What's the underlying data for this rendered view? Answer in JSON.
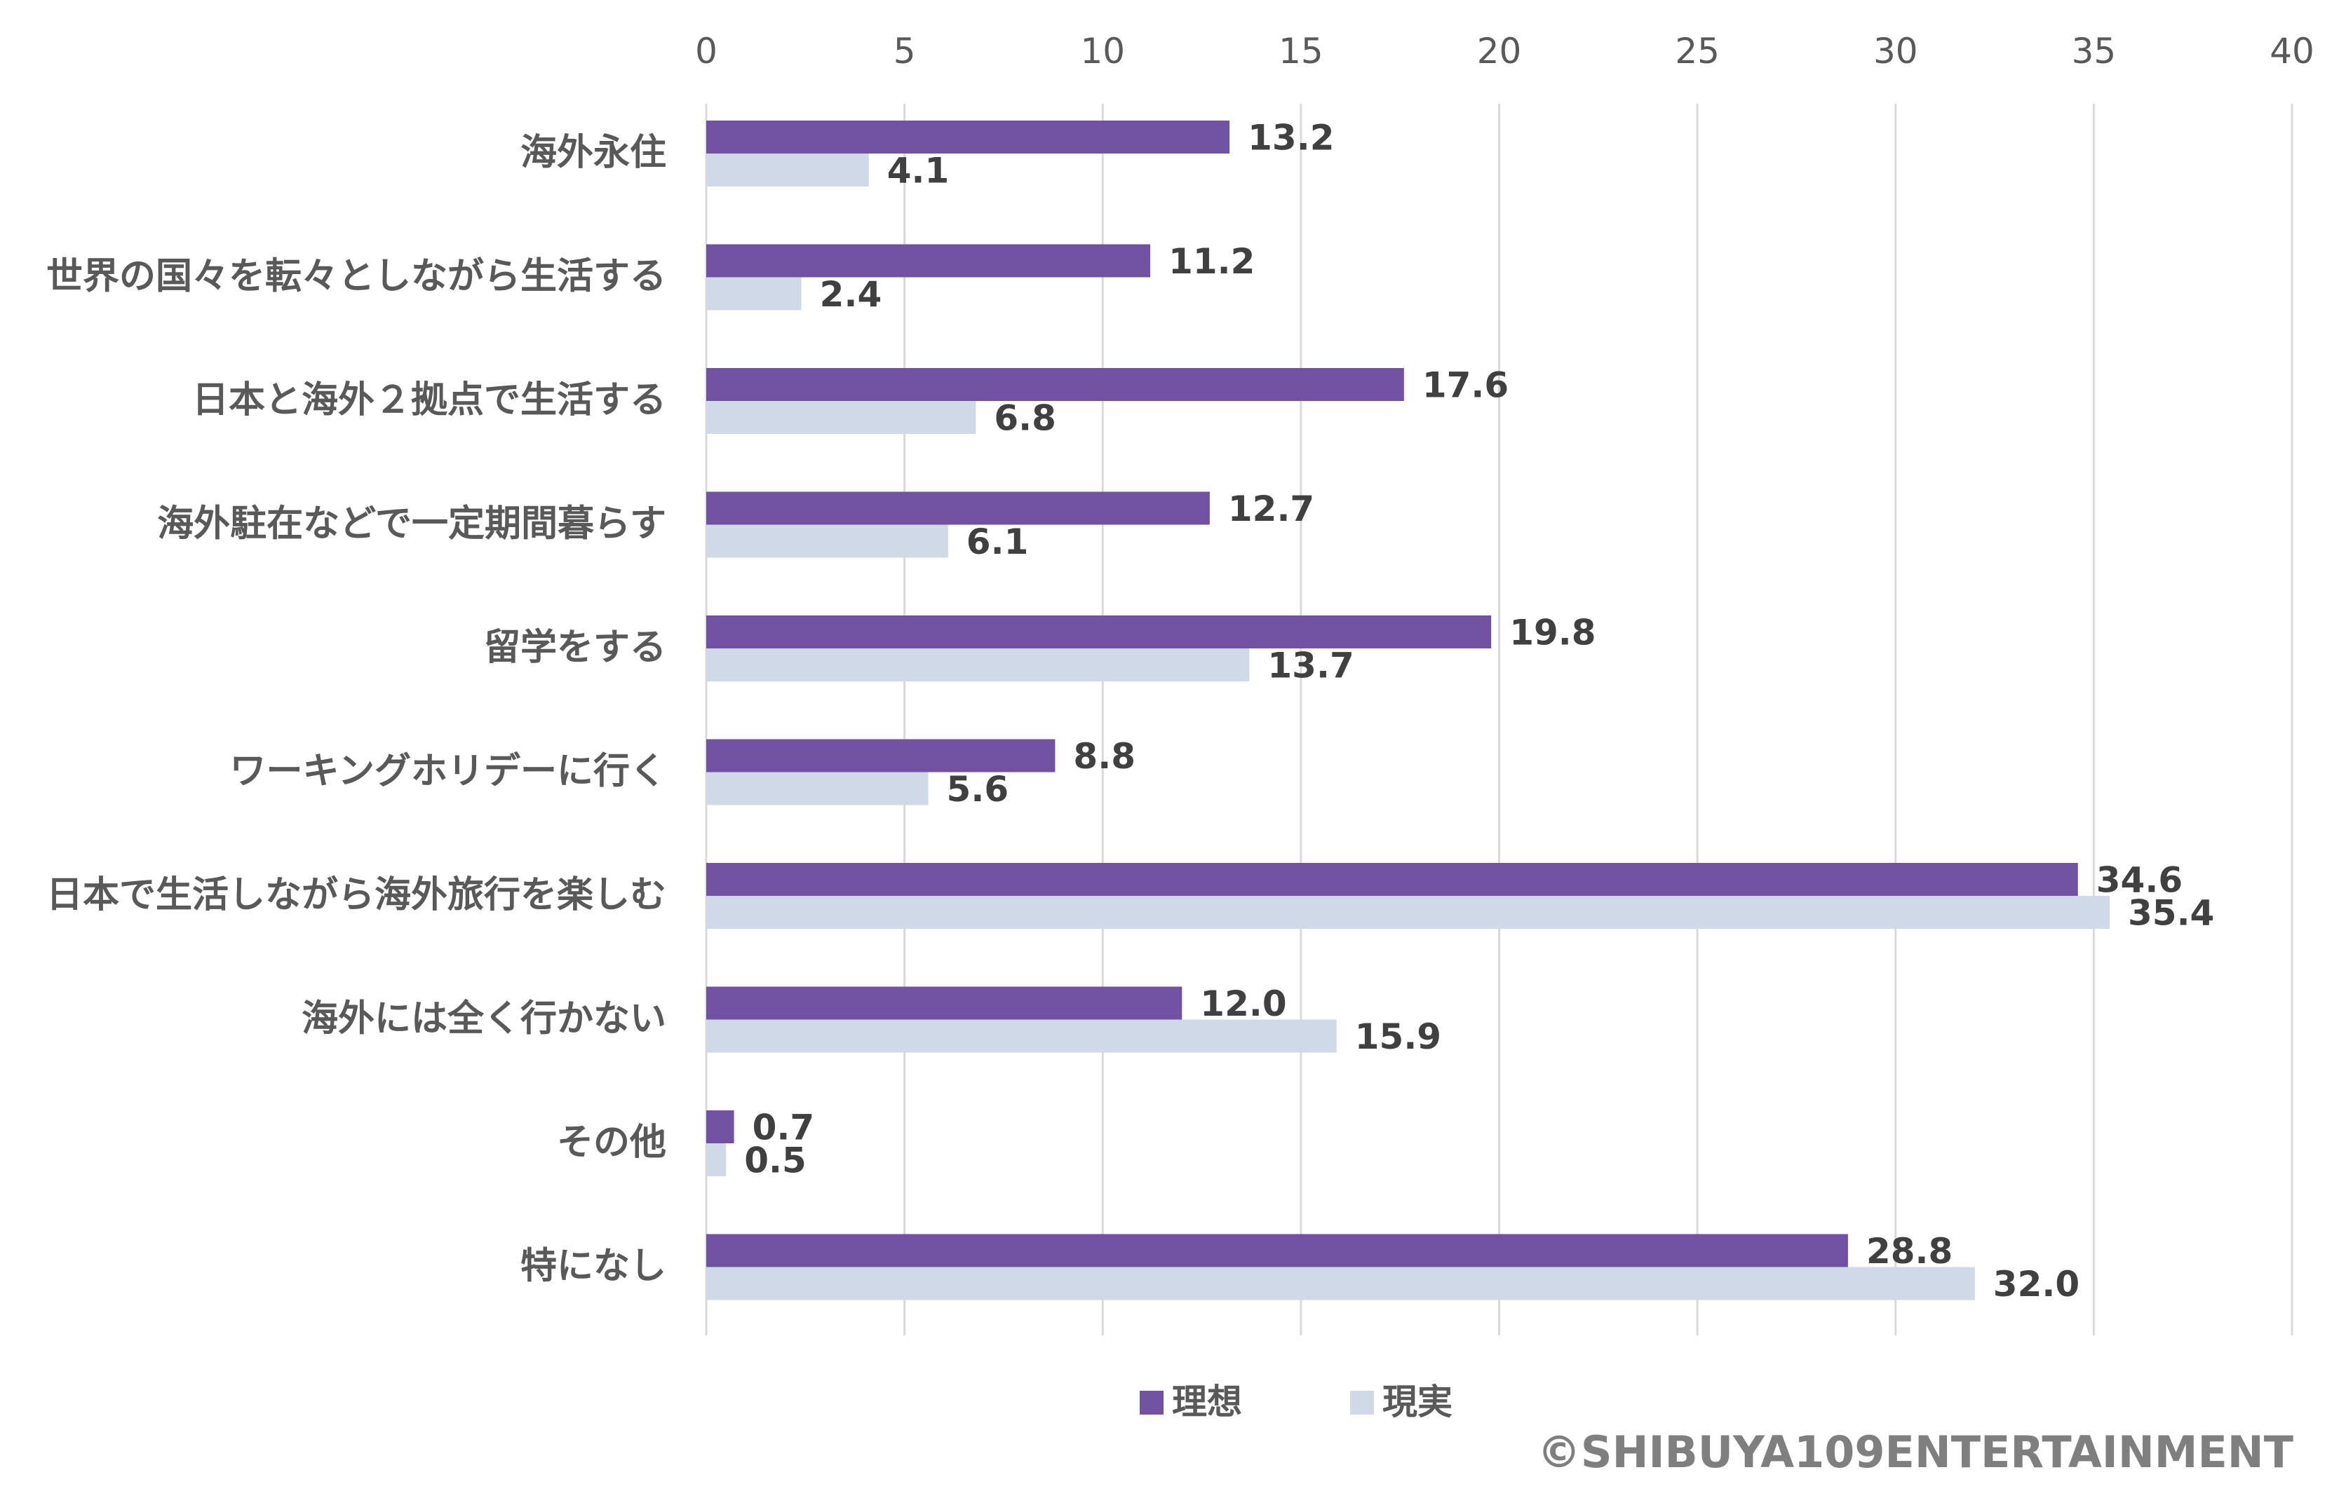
{
  "chart_data": {
    "type": "bar",
    "orientation": "horizontal",
    "title": "",
    "xlabel": "",
    "ylabel": "",
    "xlim": [
      0,
      40
    ],
    "xticks": [
      0,
      5,
      10,
      15,
      20,
      25,
      30,
      35,
      40
    ],
    "grid": true,
    "legend_position": "bottom",
    "categories": [
      "海外永住",
      "世界の国々を転々としながら生活する",
      "日本と海外２拠点で生活する",
      "海外駐在などで一定期間暮らす",
      "留学をする",
      "ワーキングホリデーに行く",
      "日本で生活しながら海外旅行を楽しむ",
      "海外には全く行かない",
      "その他",
      "特になし"
    ],
    "series": [
      {
        "name": "理想",
        "color": "#7151a1",
        "values": [
          13.2,
          11.2,
          17.6,
          12.7,
          19.8,
          8.8,
          34.6,
          12.0,
          0.7,
          28.8
        ],
        "labels": [
          "13.2",
          "11.2",
          "17.6",
          "12.7",
          "19.8",
          "8.8",
          "34.6",
          "12.0",
          "0.7",
          "28.8"
        ]
      },
      {
        "name": "現実",
        "color": "#cfd9e8",
        "values": [
          4.1,
          2.4,
          6.8,
          6.1,
          13.7,
          5.6,
          35.4,
          15.9,
          0.5,
          32.0
        ],
        "labels": [
          "4.1",
          "2.4",
          "6.8",
          "6.1",
          "13.7",
          "5.6",
          "35.4",
          "15.9",
          "0.5",
          "32.0"
        ]
      }
    ]
  },
  "footer": {
    "copyright": "©SHIBUYA109ENTERTAINMENT"
  }
}
